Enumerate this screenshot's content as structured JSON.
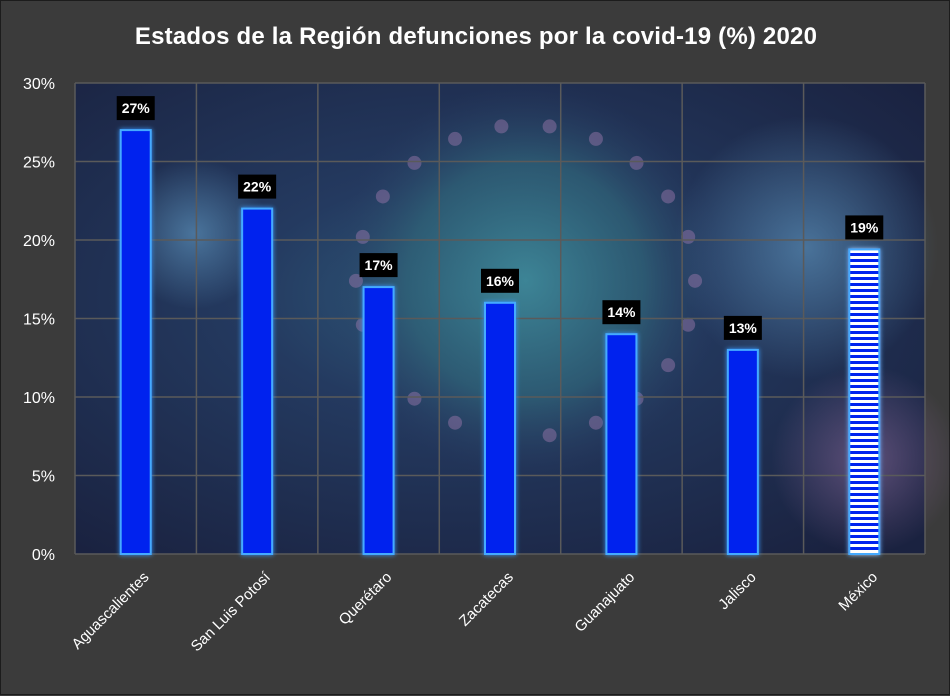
{
  "chart_data": {
    "type": "bar",
    "title": "Estados de la Región defunciones por la covid-19 (%) 2020",
    "categories": [
      "Aguascalientes",
      "San Luis Potosí",
      "Querétaro",
      "Zacatecas",
      "Guanajuato",
      "Jalisco",
      "México"
    ],
    "values": [
      27,
      22,
      17,
      16,
      14,
      13,
      19.4
    ],
    "data_labels": [
      "27%",
      "22%",
      "17%",
      "16%",
      "14%",
      "13%",
      "19%"
    ],
    "highlight": "México",
    "ylim": [
      0,
      30
    ],
    "yticks": [
      "0%",
      "5%",
      "10%",
      "15%",
      "20%",
      "25%",
      "30%"
    ],
    "ytick_values": [
      0,
      5,
      10,
      15,
      20,
      25,
      30
    ],
    "grid": true,
    "colors": {
      "bar": "#0022ee",
      "bar_edge": "#44aaff",
      "highlight_stripe": "#ffffff",
      "background": "#3b3b3b",
      "plot_bg": "#1d2745",
      "grid": "#555555",
      "text": "#ffffff"
    }
  }
}
